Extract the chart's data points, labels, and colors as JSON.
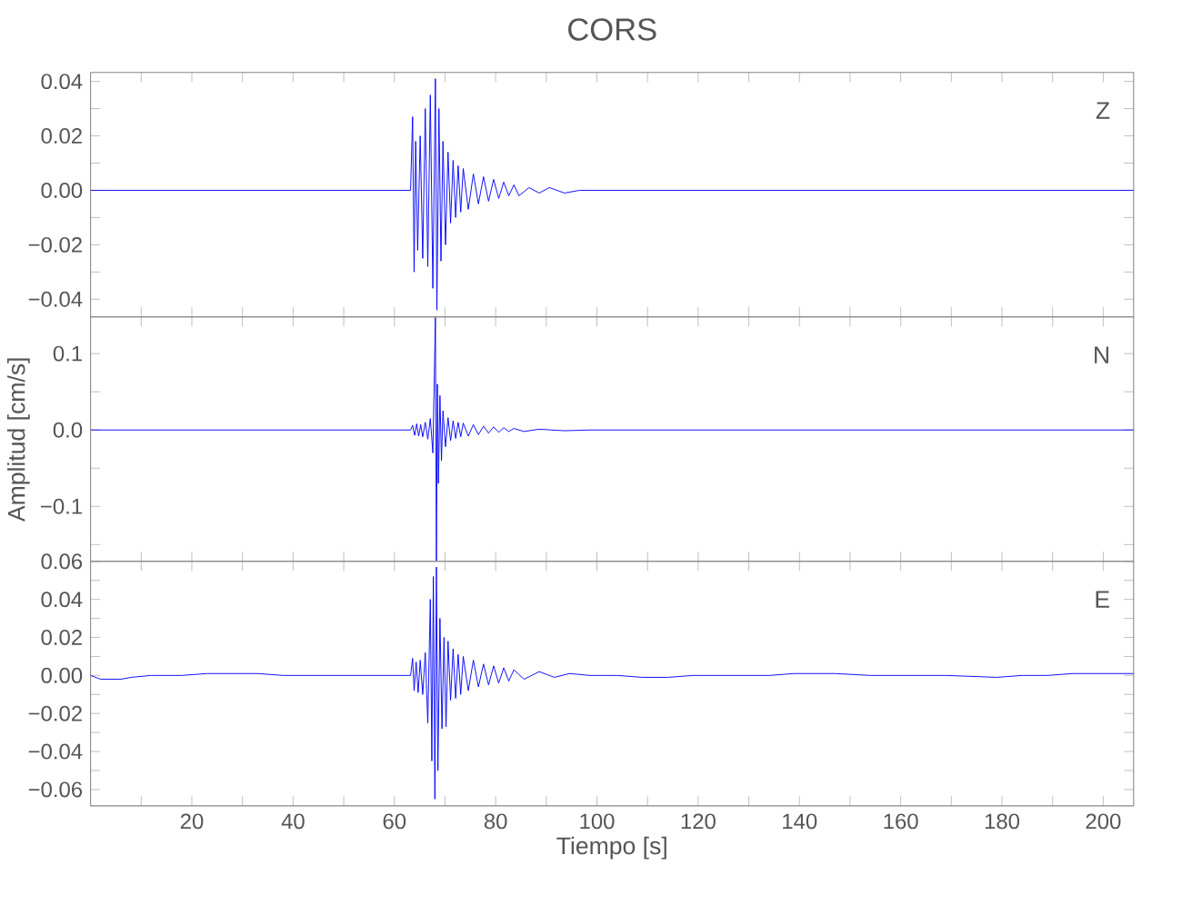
{
  "chart_data": [
    {
      "type": "line",
      "title": "CORS",
      "annotations": [
        "Z"
      ],
      "xlim": [
        0,
        206
      ],
      "ylim": [
        -0.0465,
        0.0433
      ],
      "tick_labels": "y",
      "xticks": [
        {
          "value": 10,
          "label": null
        },
        {
          "value": 20,
          "label": null
        },
        {
          "value": 30,
          "label": null
        },
        {
          "value": 40,
          "label": null
        },
        {
          "value": 50,
          "label": null
        },
        {
          "value": 60,
          "label": null
        },
        {
          "value": 70,
          "label": null
        },
        {
          "value": 80,
          "label": null
        },
        {
          "value": 90,
          "label": null
        },
        {
          "value": 100,
          "label": null
        },
        {
          "value": 110,
          "label": null
        },
        {
          "value": 120,
          "label": null
        },
        {
          "value": 130,
          "label": null
        },
        {
          "value": 140,
          "label": null
        },
        {
          "value": 150,
          "label": null
        },
        {
          "value": 160,
          "label": null
        },
        {
          "value": 170,
          "label": null
        },
        {
          "value": 180,
          "label": null
        },
        {
          "value": 190,
          "label": null
        },
        {
          "value": 200,
          "label": null
        }
      ],
      "yticks": [
        {
          "value": -0.04,
          "label": "−0.04"
        },
        {
          "value": -0.03,
          "label": null
        },
        {
          "value": -0.02,
          "label": "−0.02"
        },
        {
          "value": -0.01,
          "label": null
        },
        {
          "value": 0,
          "label": "0.00"
        },
        {
          "value": 0.01,
          "label": null
        },
        {
          "value": 0.02,
          "label": "0.02"
        },
        {
          "value": 0.03,
          "label": null
        },
        {
          "value": 0.04,
          "label": "0.04"
        }
      ],
      "x": [
        0,
        4,
        8,
        13,
        18,
        23,
        28,
        33,
        38,
        43,
        48,
        53,
        58,
        63.2,
        63.6,
        63.9,
        64.2,
        64.6,
        65.1,
        65.6,
        66.1,
        66.6,
        67.1,
        67.6,
        68.1,
        68.4,
        68.8,
        69.2,
        69.6,
        70.1,
        70.6,
        71.1,
        71.6,
        72.1,
        72.6,
        73.1,
        73.6,
        74.6,
        75.6,
        76.6,
        77.6,
        78.6,
        79.6,
        80.6,
        81.6,
        82.6,
        83.6,
        84.6,
        86.6,
        88.6,
        90.6,
        93.6,
        96.6,
        100,
        108,
        116,
        124,
        134,
        144,
        154,
        164,
        174,
        184,
        194,
        206
      ],
      "series": [
        {
          "color": "#0000ff",
          "values": [
            0,
            0,
            0,
            0,
            0,
            0,
            0,
            0,
            0,
            0,
            0,
            0,
            0,
            0,
            0.027,
            -0.03,
            0.018,
            -0.022,
            0.02,
            -0.025,
            0.03,
            -0.028,
            0.035,
            -0.036,
            0.041,
            -0.044,
            0.03,
            -0.026,
            0.018,
            -0.02,
            0.014,
            -0.012,
            0.011,
            -0.01,
            0.009,
            -0.008,
            0.008,
            -0.007,
            0.006,
            -0.005,
            0.005,
            -0.004,
            0.004,
            -0.003,
            0.003,
            -0.002,
            0.002,
            -0.002,
            0.001,
            -0.001,
            0.001,
            -0.001,
            0,
            0,
            0,
            0,
            0,
            0,
            0,
            0,
            0,
            0,
            0,
            0,
            0
          ]
        }
      ]
    },
    {
      "type": "line",
      "ylabel": "Amplitud  [cm/s]",
      "annotations": [
        "N"
      ],
      "xlim": [
        0,
        206
      ],
      "ylim": [
        -0.172,
        0.148
      ],
      "tick_labels": "y",
      "xticks": [
        {
          "value": 10,
          "label": null
        },
        {
          "value": 20,
          "label": null
        },
        {
          "value": 30,
          "label": null
        },
        {
          "value": 40,
          "label": null
        },
        {
          "value": 50,
          "label": null
        },
        {
          "value": 60,
          "label": null
        },
        {
          "value": 70,
          "label": null
        },
        {
          "value": 80,
          "label": null
        },
        {
          "value": 90,
          "label": null
        },
        {
          "value": 100,
          "label": null
        },
        {
          "value": 110,
          "label": null
        },
        {
          "value": 120,
          "label": null
        },
        {
          "value": 130,
          "label": null
        },
        {
          "value": 140,
          "label": null
        },
        {
          "value": 150,
          "label": null
        },
        {
          "value": 160,
          "label": null
        },
        {
          "value": 170,
          "label": null
        },
        {
          "value": 180,
          "label": null
        },
        {
          "value": 190,
          "label": null
        },
        {
          "value": 200,
          "label": null
        }
      ],
      "yticks": [
        {
          "value": -0.15,
          "label": null
        },
        {
          "value": -0.1,
          "label": "−0.1"
        },
        {
          "value": -0.05,
          "label": null
        },
        {
          "value": 0,
          "label": "0.0"
        },
        {
          "value": 0.05,
          "label": null
        },
        {
          "value": 0.1,
          "label": "0.1"
        }
      ],
      "x": [
        0,
        4,
        8,
        13,
        18,
        23,
        28,
        33,
        38,
        43,
        48,
        53,
        58,
        63.2,
        63.6,
        64,
        64.4,
        64.8,
        65.2,
        65.6,
        66.1,
        66.6,
        67.1,
        67.6,
        67.9,
        68.1,
        68.3,
        68.5,
        68.7,
        69,
        69.3,
        69.6,
        70.1,
        70.6,
        71.1,
        71.6,
        72.1,
        72.6,
        73.1,
        73.6,
        74.6,
        75.6,
        76.6,
        77.6,
        78.6,
        79.6,
        80.6,
        81.6,
        82.6,
        83.6,
        85.6,
        88.6,
        93.6,
        98.6,
        104,
        112,
        120,
        130,
        140,
        150,
        160,
        170,
        180,
        190,
        200,
        206
      ],
      "series": [
        {
          "color": "#0000ff",
          "values": [
            0,
            0,
            0,
            0,
            0,
            0,
            0,
            0,
            0,
            0,
            0,
            0,
            0,
            0,
            0.006,
            -0.007,
            0.008,
            -0.008,
            0.007,
            -0.009,
            0.01,
            -0.012,
            0.015,
            -0.03,
            0.075,
            0.147,
            -0.171,
            0.06,
            -0.07,
            0.045,
            -0.04,
            0.025,
            -0.022,
            0.016,
            -0.014,
            0.012,
            -0.011,
            0.01,
            -0.009,
            0.009,
            -0.008,
            0.007,
            -0.006,
            0.005,
            -0.004,
            0.004,
            -0.003,
            0.003,
            -0.002,
            0.002,
            -0.002,
            0.001,
            -0.001,
            0,
            0,
            0,
            0,
            0,
            0,
            0,
            0,
            0,
            0,
            0,
            0,
            0
          ]
        }
      ]
    },
    {
      "type": "line",
      "xlabel": "Tiempo  [s]",
      "annotations": [
        "E"
      ],
      "xlim": [
        0,
        206
      ],
      "ylim": [
        -0.0686,
        0.06
      ],
      "xticks": [
        {
          "value": 10,
          "label": null
        },
        20,
        {
          "value": 30,
          "label": null
        },
        40,
        {
          "value": 50,
          "label": null
        },
        60,
        {
          "value": 70,
          "label": null
        },
        80,
        {
          "value": 90,
          "label": null
        },
        100,
        {
          "value": 110,
          "label": null
        },
        120,
        {
          "value": 130,
          "label": null
        },
        140,
        {
          "value": 150,
          "label": null
        },
        160,
        {
          "value": 170,
          "label": null
        },
        180,
        {
          "value": 190,
          "label": null
        },
        200
      ],
      "yticks": [
        {
          "value": -0.06,
          "label": "−0.06"
        },
        {
          "value": -0.05,
          "label": null
        },
        {
          "value": -0.04,
          "label": "−0.04"
        },
        {
          "value": -0.03,
          "label": null
        },
        {
          "value": -0.02,
          "label": "−0.02"
        },
        {
          "value": -0.01,
          "label": null
        },
        {
          "value": 0,
          "label": "0.00"
        },
        {
          "value": 0.01,
          "label": null
        },
        {
          "value": 0.02,
          "label": "0.02"
        },
        {
          "value": 0.03,
          "label": null
        },
        {
          "value": 0.04,
          "label": "0.04"
        },
        {
          "value": 0.05,
          "label": null
        },
        {
          "value": 0.06,
          "label": "0.06"
        }
      ],
      "x": [
        0,
        2,
        4,
        6,
        8,
        12,
        18,
        23,
        28,
        33,
        38,
        43,
        48,
        53,
        58,
        63.2,
        63.6,
        63.9,
        64.3,
        64.7,
        65.1,
        65.6,
        66.1,
        66.6,
        67.1,
        67.4,
        67.7,
        68,
        68.3,
        68.6,
        69,
        69.4,
        69.8,
        70.2,
        70.6,
        71.1,
        71.6,
        72.1,
        72.6,
        73.1,
        73.6,
        74.6,
        75.6,
        76.6,
        77.6,
        78.6,
        79.6,
        80.6,
        81.6,
        82.6,
        83.6,
        85.6,
        88.6,
        91.6,
        94.6,
        98.6,
        104,
        109,
        114,
        119,
        124,
        129,
        134,
        139,
        147,
        154,
        159,
        169,
        179,
        184,
        189,
        194,
        206
      ],
      "series": [
        {
          "color": "#0000ff",
          "values": [
            0,
            -0.002,
            -0.002,
            -0.002,
            -0.001,
            0,
            0,
            0.001,
            0.001,
            0.001,
            0,
            0,
            0,
            0,
            0,
            0,
            0.009,
            -0.008,
            0.007,
            -0.009,
            0.008,
            -0.01,
            0.012,
            -0.025,
            0.04,
            -0.045,
            0.052,
            -0.065,
            0.057,
            -0.05,
            0.03,
            -0.028,
            0.02,
            -0.027,
            0.018,
            -0.013,
            0.014,
            -0.012,
            0.011,
            -0.01,
            0.01,
            -0.008,
            0.008,
            -0.006,
            0.006,
            -0.005,
            0.005,
            -0.004,
            0.004,
            -0.003,
            0.003,
            -0.002,
            0.002,
            -0.001,
            0.001,
            0,
            0,
            -0.001,
            -0.001,
            0,
            0,
            0,
            0,
            0.001,
            0.001,
            0,
            0,
            0,
            -0.001,
            0,
            0,
            0.001,
            0.001
          ]
        }
      ]
    }
  ]
}
